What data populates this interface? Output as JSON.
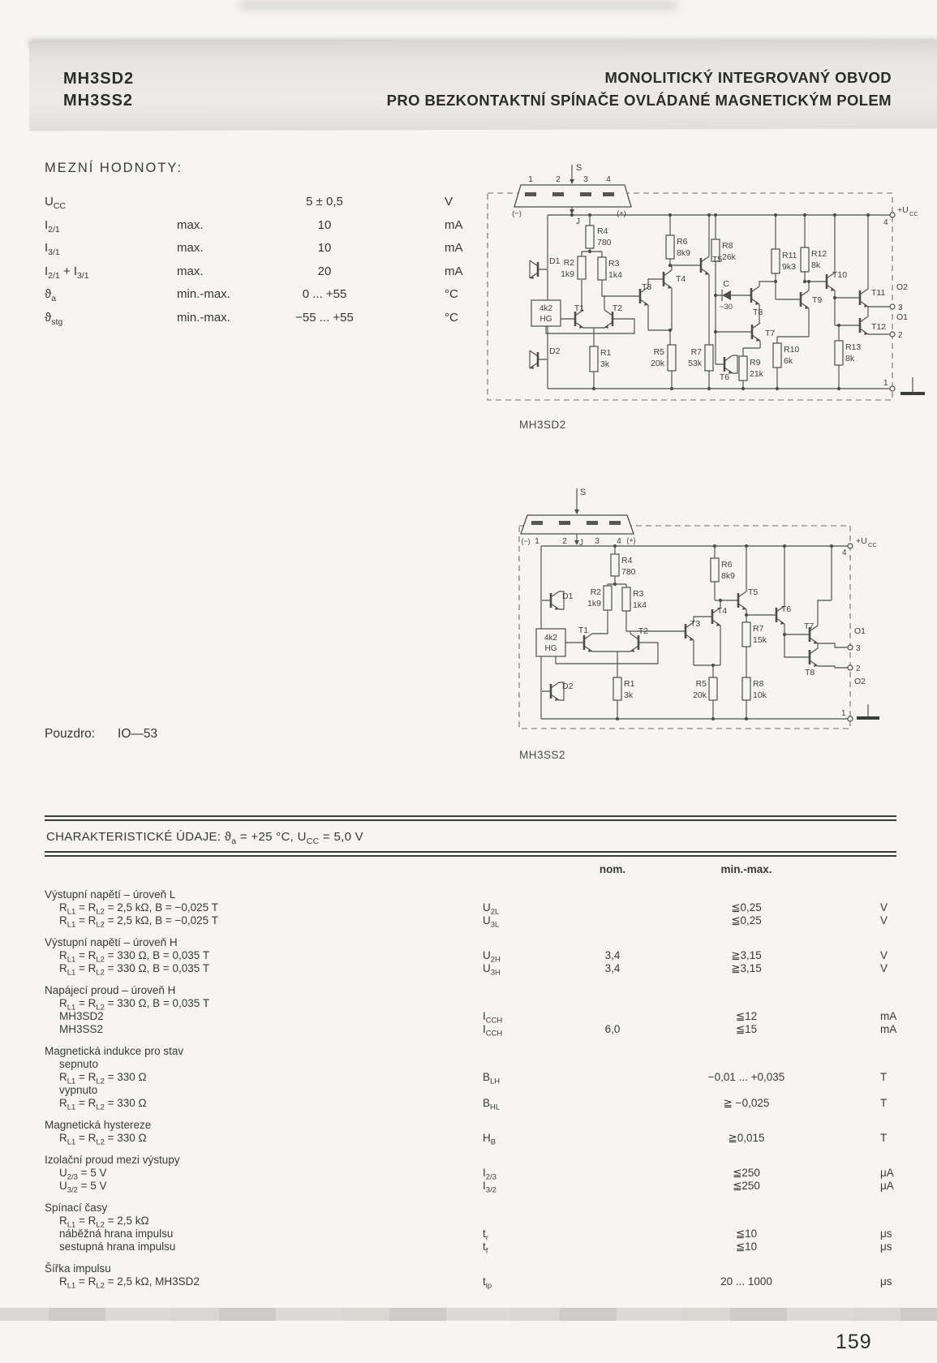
{
  "header": {
    "part1": "MH3SD2",
    "part2": "MH3SS2",
    "title1": "MONOLITICKÝ INTEGROVANÝ OBVOD",
    "title2": "PRO BEZKONTAKTNÍ SPÍNAČE OVLÁDANÉ MAGNETICKÝM POLEM"
  },
  "limits": {
    "heading": "MEZNÍ HODNOTY:",
    "rows": [
      {
        "param": "U~CC~",
        "cond": "",
        "value": "5 ± 0,5",
        "unit": "V"
      },
      {
        "param": "I~2/1~",
        "cond": "max.",
        "value": "10",
        "unit": "mA"
      },
      {
        "param": "I~3/1~",
        "cond": "max.",
        "value": "10",
        "unit": "mA"
      },
      {
        "param": "I~2/1~ + I~3/1~",
        "cond": "max.",
        "value": "20",
        "unit": "mA"
      },
      {
        "param": "ϑ~a~",
        "cond": "min.-max.",
        "value": "0 ... +55",
        "unit": "°C"
      },
      {
        "param": "ϑ~stg~",
        "cond": "min.-max.",
        "value": "−55 ... +55",
        "unit": "°C"
      }
    ]
  },
  "package_line": {
    "label": "Pouzdro:",
    "value": "IO—53"
  },
  "sch1": {
    "labels": {
      "p1": "1",
      "p2": "2",
      "p3": "3",
      "p4": "4",
      "s": "S",
      "j": "J",
      "neg": "(−)",
      "pos": "(+)",
      "r4": "R4",
      "r4v": "780",
      "r2": "R2",
      "r2v": "1k9",
      "r3": "R3",
      "r3v": "1k4",
      "r6": "R6",
      "r6v": "8k9",
      "r8": "R8",
      "r8v": "26k",
      "r11": "R11",
      "r11v": "9k3",
      "r12": "R12",
      "r12v": "8k",
      "r1": "R1",
      "r1v": "3k",
      "r5": "R5",
      "r5v": "20k",
      "r7": "R7",
      "r7v": "53k",
      "r9": "R9",
      "r9v": "21k",
      "r10": "R10",
      "r10v": "6k",
      "r13": "R13",
      "r13v": "8k",
      "d1": "D1",
      "d2": "D2",
      "t1": "T1",
      "t2": "T2",
      "t3": "T3",
      "t4": "T4",
      "t5": "T5",
      "t6": "T6",
      "t7": "T7",
      "t8": "T8",
      "t9": "T9",
      "t10": "T10",
      "t11": "T11",
      "t12": "T12",
      "hg1": "4k2",
      "hg2": "HG",
      "c": "C",
      "cv": "~30",
      "pin4": "4",
      "uccM": "+U",
      "uccS": "CC",
      "o2": "O2",
      "out3": "3",
      "o1": "O1",
      "out2": "2",
      "pin1": "1",
      "caption": "MH3SD2"
    }
  },
  "sch2": {
    "labels": {
      "n1": "1",
      "n2": "2",
      "n3": "3",
      "n4": "4",
      "s": "S",
      "j": "J",
      "neg": "(−)",
      "pos": "(+)",
      "r4": "R4",
      "r4v": "780",
      "r2": "R2",
      "r2v": "1k9",
      "r3": "R3",
      "r3v": "1k4",
      "r6": "R6",
      "r6v": "8k9",
      "r7": "R7",
      "r7v": "15k",
      "r1": "R1",
      "r1v": "3k",
      "r5": "R5",
      "r5v": "20k",
      "r8": "R8",
      "r8v": "10k",
      "d1": "D1",
      "d2": "D2",
      "t1": "T1",
      "t2": "T2",
      "t3": "T3",
      "t4": "T4",
      "t5": "T5",
      "t6": "T6",
      "t7": "T7",
      "t8": "T8",
      "hg1": "4k2",
      "hg2": "HG",
      "pin4": "4",
      "uccM": "+U",
      "uccS": "CC",
      "o1": "O1",
      "out3": "3",
      "out2": "2",
      "o2": "O2",
      "pin1": "1",
      "caption": "MH3SS2"
    }
  },
  "char_table": {
    "title": "CHARAKTERISTICKÉ ÚDAJE: ϑ~a~ = +25 °C, U~CC~ = 5,0 V",
    "col_nom": "nom.",
    "col_minmax": "min.-max.",
    "groups": [
      {
        "head": "Výstupní napětí – úroveň L",
        "rows": [
          {
            "label": "R~L1~ = R~L2~ = 2,5 kΩ, B = −0,025 T",
            "sym": "U~2L~",
            "nom": "",
            "mm": "≦0,25",
            "unit": "V"
          },
          {
            "label": "R~L1~ = R~L2~ = 2,5 kΩ, B = −0,025 T",
            "sym": "U~3L~",
            "nom": "",
            "mm": "≦0,25",
            "unit": "V"
          }
        ]
      },
      {
        "head": "Výstupní napětí – úroveň H",
        "rows": [
          {
            "label": "R~L1~ = R~L2~ = 330 Ω, B = 0,035 T",
            "sym": "U~2H~",
            "nom": "3,4",
            "mm": "≧3,15",
            "unit": "V"
          },
          {
            "label": "R~L1~ = R~L2~ = 330 Ω, B = 0,035 T",
            "sym": "U~3H~",
            "nom": "3,4",
            "mm": "≧3,15",
            "unit": "V"
          }
        ]
      },
      {
        "head": "Napájecí proud – úroveň H",
        "rows": [
          {
            "label": "R~L1~ = R~L2~ = 330 Ω, B = 0,035 T",
            "sym": "",
            "nom": "",
            "mm": "",
            "unit": ""
          },
          {
            "label": "MH3SD2",
            "sym": "I~CCH~",
            "nom": "",
            "mm": "≦12",
            "unit": "mA"
          },
          {
            "label": "MH3SS2",
            "sym": "I~CCH~",
            "nom": "6,0",
            "mm": "≦15",
            "unit": "mA"
          }
        ]
      },
      {
        "head": "Magnetická indukce pro stav",
        "rows": [
          {
            "label": "sepnuto",
            "sym": "",
            "nom": "",
            "mm": "",
            "unit": ""
          },
          {
            "label": "R~L1~ = R~L2~ = 330 Ω",
            "sym": "B~LH~",
            "nom": "",
            "mm": "−0,01 ... +0,035",
            "unit": "T"
          },
          {
            "label": "vypnuto",
            "sym": "",
            "nom": "",
            "mm": "",
            "unit": ""
          },
          {
            "label": "R~L1~ = R~L2~ = 330 Ω",
            "sym": "B~HL~",
            "nom": "",
            "mm": "≧ −0,025",
            "unit": "T"
          }
        ]
      },
      {
        "head": "Magnetická hystereze",
        "rows": [
          {
            "label": "R~L1~ = R~L2~ = 330 Ω",
            "sym": "H~B~",
            "nom": "",
            "mm": "≧0,015",
            "unit": "T"
          }
        ]
      },
      {
        "head": "Izolační proud mezi výstupy",
        "rows": [
          {
            "label": "U~2/3~ = 5 V",
            "sym": "I~2/3~",
            "nom": "",
            "mm": "≦250",
            "unit": "μA"
          },
          {
            "label": "U~3/2~ = 5 V",
            "sym": "I~3/2~",
            "nom": "",
            "mm": "≦250",
            "unit": "μA"
          }
        ]
      },
      {
        "head": "Spínací časy",
        "rows": [
          {
            "label": "R~L1~ = R~L2~ = 2,5 kΩ",
            "sym": "",
            "nom": "",
            "mm": "",
            "unit": ""
          },
          {
            "label": "náběžná hrana impulsu",
            "sym": "t~r~",
            "nom": "",
            "mm": "≦10",
            "unit": "μs"
          },
          {
            "label": "sestupná hrana impulsu",
            "sym": "t~f~",
            "nom": "",
            "mm": "≦10",
            "unit": "μs"
          }
        ]
      },
      {
        "head": "Šířka impulsu",
        "rows": [
          {
            "label": "R~L1~ = R~L2~ = 2,5 kΩ, MH3SD2",
            "sym": "t~ip~",
            "nom": "",
            "mm": "20 ... 1000",
            "unit": "μs"
          }
        ]
      }
    ]
  },
  "page_number": "159"
}
